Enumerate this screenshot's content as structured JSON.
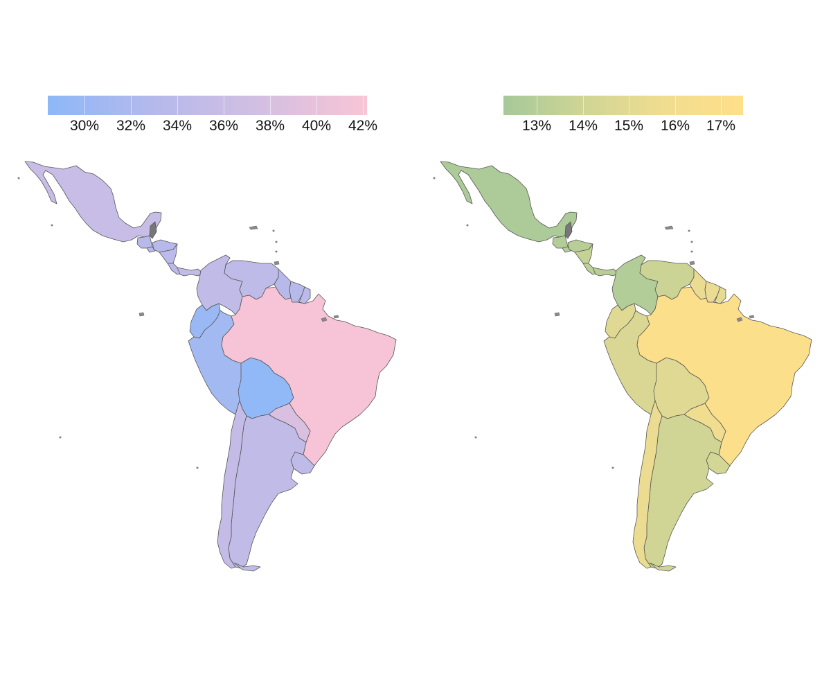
{
  "maps": [
    {
      "legend": {
        "ticks": [
          "30%",
          "32%",
          "34%",
          "36%",
          "38%",
          "40%",
          "42%"
        ],
        "colors": [
          "#8db8f8",
          "#b5b9ec",
          "#d3bfe2",
          "#f9c5d5"
        ],
        "range": [
          28.5,
          42.4
        ]
      },
      "regions": [
        {
          "name": "mexico",
          "value": 36.0
        },
        {
          "name": "guatemala",
          "value": 33.5
        },
        {
          "name": "honduras",
          "value": 33.5
        },
        {
          "name": "el-salvador",
          "value": 33.5
        },
        {
          "name": "nicaragua",
          "value": 34.0
        },
        {
          "name": "costa-rica",
          "value": 34.0
        },
        {
          "name": "panama",
          "value": 35.0
        },
        {
          "name": "colombia",
          "value": 35.0
        },
        {
          "name": "venezuela",
          "value": 34.5
        },
        {
          "name": "guyana",
          "value": 33.5
        },
        {
          "name": "suriname",
          "value": 33.5
        },
        {
          "name": "french-guiana",
          "value": 34.0
        },
        {
          "name": "ecuador",
          "value": 30.0
        },
        {
          "name": "peru",
          "value": 31.0
        },
        {
          "name": "bolivia",
          "value": 29.0
        },
        {
          "name": "brazil",
          "value": 42.0
        },
        {
          "name": "paraguay",
          "value": 38.5
        },
        {
          "name": "chile",
          "value": 35.5
        },
        {
          "name": "argentina",
          "value": 35.0
        },
        {
          "name": "uruguay",
          "value": 34.5
        }
      ],
      "no_data_color": "#777777"
    },
    {
      "legend": {
        "ticks": [
          "13%",
          "14%",
          "15%",
          "16%",
          "17%"
        ],
        "colors": [
          "#a5c999",
          "#cfd595",
          "#f0dd90",
          "#ffdf8a"
        ],
        "range": [
          12.2,
          17.5
        ]
      },
      "regions": [
        {
          "name": "mexico",
          "value": 12.5
        },
        {
          "name": "guatemala",
          "value": 12.8
        },
        {
          "name": "honduras",
          "value": 13.0
        },
        {
          "name": "el-salvador",
          "value": 13.0
        },
        {
          "name": "nicaragua",
          "value": 13.5
        },
        {
          "name": "costa-rica",
          "value": 13.2
        },
        {
          "name": "panama",
          "value": 13.0
        },
        {
          "name": "colombia",
          "value": 12.8
        },
        {
          "name": "venezuela",
          "value": 13.8
        },
        {
          "name": "guyana",
          "value": 15.5
        },
        {
          "name": "suriname",
          "value": 15.5
        },
        {
          "name": "french-guiana",
          "value": 15.2
        },
        {
          "name": "ecuador",
          "value": 14.8
        },
        {
          "name": "peru",
          "value": 14.5
        },
        {
          "name": "bolivia",
          "value": 14.8
        },
        {
          "name": "brazil",
          "value": 17.2
        },
        {
          "name": "paraguay",
          "value": 15.8
        },
        {
          "name": "chile",
          "value": 15.5
        },
        {
          "name": "argentina",
          "value": 14.0
        },
        {
          "name": "uruguay",
          "value": 14.2
        }
      ],
      "no_data_color": "#777777"
    }
  ]
}
